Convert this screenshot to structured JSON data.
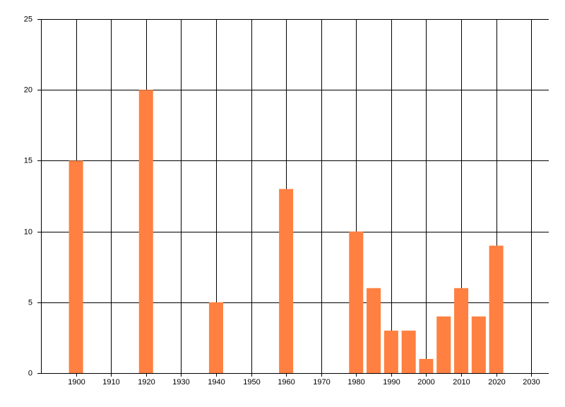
{
  "chart_data": {
    "type": "bar",
    "x": [
      1900,
      1920,
      1940,
      1960,
      1980,
      1985,
      1990,
      1995,
      2000,
      2005,
      2010,
      2015,
      2020
    ],
    "values": [
      15,
      20,
      5,
      13,
      10,
      6,
      3,
      3,
      1,
      4,
      6,
      4,
      9
    ],
    "color": "#ff8040",
    "xlim": [
      1890,
      2035
    ],
    "xticks": [
      1900,
      1910,
      1920,
      1930,
      1940,
      1950,
      1960,
      1970,
      1980,
      1990,
      2000,
      2010,
      2020,
      2030
    ],
    "ylim": [
      0,
      25
    ],
    "yticks": [
      0,
      5,
      10,
      15,
      20,
      25
    ],
    "grid": true
  }
}
